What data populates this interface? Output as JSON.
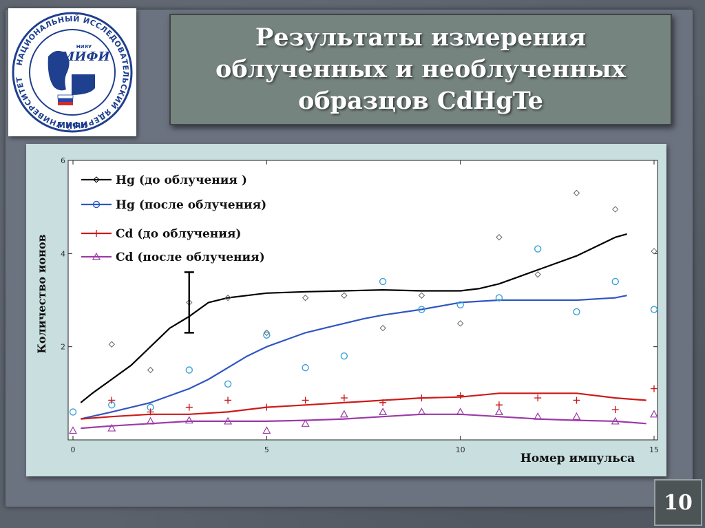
{
  "slide": {
    "title": "Результаты измерения\nоблученных и необлученных\nобразцов  CdHgTe",
    "page_number": "10"
  },
  "logo": {
    "text_ring": "НАЦИОНАЛЬНЫЙ ИССЛЕДОВАТЕЛЬСКИЙ ЯДЕРНЫЙ УНИВЕРСИТЕТ",
    "text_bottom": "МИФИ",
    "text_mark": "МИФИ",
    "text_small": "НИЯУ"
  },
  "colors": {
    "hg_before": "#000000",
    "hg_after": "#2f55c2",
    "cd_before": "#cc1a1a",
    "cd_after": "#9b3aa6",
    "hg_after_points": "#3aa0d8",
    "background": "#c8dedf"
  },
  "chart_data": {
    "type": "line",
    "xlabel": "Номер импульса",
    "ylabel": "Количество ионов",
    "xlim": [
      0,
      15
    ],
    "ylim": [
      0,
      6
    ],
    "xticks": [
      "0",
      "5",
      "10",
      "15"
    ],
    "yticks": [
      "2",
      "4",
      "6"
    ],
    "legend_position": "top-left",
    "series": [
      {
        "name": "Hg (до облучения )",
        "color": "#000000",
        "x": [
          0.2,
          0.5,
          1,
          1.5,
          2,
          2.5,
          2.8,
          3,
          3.5,
          4,
          4.5,
          5,
          6,
          7,
          8,
          9,
          10,
          10.5,
          11,
          11.5,
          12,
          12.5,
          13,
          13.5,
          14,
          14.3
        ],
        "y": [
          0.8,
          1.0,
          1.3,
          1.6,
          2.0,
          2.4,
          2.55,
          2.65,
          2.95,
          3.05,
          3.1,
          3.15,
          3.18,
          3.2,
          3.22,
          3.2,
          3.2,
          3.25,
          3.35,
          3.5,
          3.65,
          3.8,
          3.95,
          4.15,
          4.35,
          4.42
        ]
      },
      {
        "name": "Hg (после облучения)",
        "color": "#2f55c2",
        "x": [
          0.2,
          1,
          2,
          3,
          3.5,
          4,
          4.5,
          5,
          5.5,
          6,
          6.5,
          7,
          7.5,
          8,
          9,
          10,
          11,
          12,
          13,
          14,
          14.3
        ],
        "y": [
          0.45,
          0.6,
          0.8,
          1.1,
          1.3,
          1.55,
          1.8,
          2.0,
          2.15,
          2.3,
          2.4,
          2.5,
          2.6,
          2.68,
          2.8,
          2.95,
          3.0,
          3.0,
          3.0,
          3.05,
          3.1
        ]
      },
      {
        "name": "Cd (до облучения)",
        "color": "#cc1a1a",
        "x": [
          0.2,
          1,
          2,
          3,
          4,
          5,
          6,
          7,
          8,
          9,
          10,
          11,
          12,
          13,
          14,
          14.8
        ],
        "y": [
          0.45,
          0.5,
          0.55,
          0.55,
          0.6,
          0.7,
          0.75,
          0.8,
          0.85,
          0.9,
          0.92,
          1.0,
          1.0,
          1.0,
          0.9,
          0.85
        ]
      },
      {
        "name": "Cd (после облучения)",
        "color": "#9b3aa6",
        "x": [
          0.2,
          1,
          2,
          3,
          4,
          5,
          6,
          7,
          8,
          9,
          10,
          11,
          12,
          13,
          14,
          14.8
        ],
        "y": [
          0.25,
          0.3,
          0.35,
          0.4,
          0.4,
          0.4,
          0.42,
          0.45,
          0.5,
          0.55,
          0.55,
          0.5,
          0.45,
          0.42,
          0.4,
          0.35
        ]
      }
    ],
    "scatter": [
      {
        "name": "Hg (до облучения ) points",
        "marker": "diamond",
        "color": "#666666",
        "x": [
          1,
          2,
          3,
          4,
          5,
          6,
          7,
          8,
          9,
          10,
          11,
          12,
          13,
          14,
          15
        ],
        "y": [
          2.05,
          1.5,
          2.95,
          3.05,
          2.3,
          3.05,
          3.1,
          2.4,
          3.1,
          2.5,
          4.35,
          3.55,
          5.3,
          4.95,
          4.05
        ]
      },
      {
        "name": "Hg (после облучения) points",
        "marker": "circle",
        "color": "#3aa0d8",
        "x": [
          0,
          1,
          2,
          3,
          4,
          5,
          6,
          7,
          8,
          9,
          10,
          11,
          12,
          13,
          14,
          15
        ],
        "y": [
          0.6,
          0.75,
          0.7,
          1.5,
          1.2,
          2.25,
          1.55,
          1.8,
          3.4,
          2.8,
          2.9,
          3.05,
          4.1,
          2.75,
          3.4,
          2.8
        ]
      },
      {
        "name": "Cd (до облучения) points",
        "marker": "plus",
        "color": "#cc1a1a",
        "x": [
          1,
          2,
          3,
          4,
          5,
          6,
          7,
          8,
          9,
          10,
          11,
          12,
          13,
          14,
          15
        ],
        "y": [
          0.85,
          0.6,
          0.7,
          0.85,
          0.7,
          0.85,
          0.9,
          0.8,
          0.9,
          0.95,
          0.75,
          0.9,
          0.85,
          0.65,
          1.1
        ]
      },
      {
        "name": "Cd (после облучения) points",
        "marker": "triangle",
        "color": "#9b3aa6",
        "x": [
          0,
          1,
          2,
          3,
          4,
          5,
          6,
          7,
          8,
          9,
          10,
          11,
          12,
          13,
          14,
          15
        ],
        "y": [
          0.2,
          0.25,
          0.4,
          0.42,
          0.4,
          0.2,
          0.35,
          0.55,
          0.6,
          0.6,
          0.6,
          0.6,
          0.5,
          0.5,
          0.4,
          0.55
        ]
      }
    ],
    "error_bar": {
      "x": 3,
      "y_low": 2.3,
      "y_high": 3.6
    }
  }
}
